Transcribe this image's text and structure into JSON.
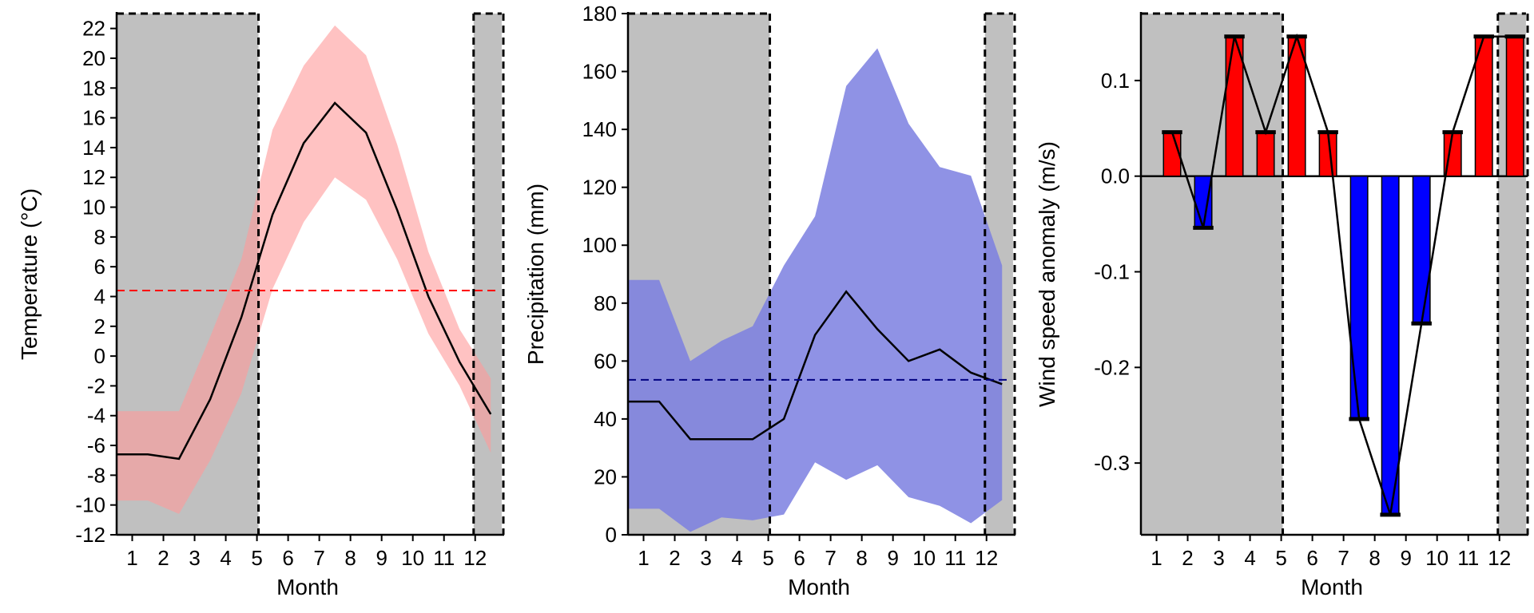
{
  "chart_data": [
    {
      "type": "line",
      "xlabel": "Month",
      "ylabel": "Temperature (°C)",
      "xlim": [
        0.5,
        12.75
      ],
      "ylim": [
        -12,
        23
      ],
      "x_ticks": [
        1,
        2,
        3,
        4,
        5,
        6,
        7,
        8,
        9,
        10,
        11,
        12
      ],
      "x_tick_labels": [
        "1",
        "2",
        "3",
        "4",
        "5",
        "6",
        "7",
        "8",
        "9",
        "10",
        "11",
        "12"
      ],
      "y_ticks": [
        -12,
        -10,
        -8,
        -6,
        -4,
        -2,
        0,
        2,
        4,
        6,
        8,
        10,
        12,
        14,
        16,
        18,
        20,
        22
      ],
      "y_tick_labels": [
        "-12",
        "-10",
        "-8",
        "-6",
        "-4",
        "-2",
        "0",
        "2",
        "4",
        "6",
        "8",
        "10",
        "12",
        "14",
        "16",
        "18",
        "20",
        "22"
      ],
      "shaded_periods": [
        [
          0.5,
          5.05
        ],
        [
          11.95,
          12.85
        ]
      ],
      "shade_color": "#c0c0c0",
      "band_color": "#ff9999",
      "band": {
        "x": [
          0.5,
          1.5,
          2.5,
          3.5,
          4.5,
          5.5,
          6.5,
          7.5,
          8.5,
          9.5,
          10.5,
          11.5,
          12.5
        ],
        "upper": [
          -3.7,
          -3.7,
          -3.7,
          1.3,
          6.5,
          15.2,
          19.5,
          22.2,
          20.2,
          14.2,
          7.0,
          1.8,
          -1.5
        ],
        "lower": [
          -9.7,
          -9.7,
          -10.6,
          -7.0,
          -2.5,
          4.5,
          9.0,
          12.0,
          10.5,
          6.5,
          1.5,
          -2.0,
          -6.5
        ]
      },
      "series": [
        {
          "x": [
            0.5,
            1.5,
            2.5,
            3.5,
            4.5,
            5.5,
            6.5,
            7.5,
            8.5,
            9.5,
            10.5,
            11.5,
            12.5
          ],
          "values": [
            -6.6,
            -6.6,
            -6.9,
            -2.9,
            2.6,
            9.5,
            14.3,
            17.0,
            15.0,
            9.8,
            4.0,
            -0.4,
            -3.9
          ],
          "color": "#000000"
        }
      ],
      "hline": {
        "value": 4.4,
        "color": "#ff0000"
      }
    },
    {
      "type": "line",
      "xlabel": "Month",
      "ylabel": "Precipitation (mm)",
      "xlim": [
        0.5,
        12.75
      ],
      "ylim": [
        0,
        180
      ],
      "x_ticks": [
        1,
        2,
        3,
        4,
        5,
        6,
        7,
        8,
        9,
        10,
        11,
        12
      ],
      "x_tick_labels": [
        "1",
        "2",
        "3",
        "4",
        "5",
        "6",
        "7",
        "8",
        "9",
        "10",
        "11",
        "12"
      ],
      "y_ticks": [
        0,
        20,
        40,
        60,
        80,
        100,
        120,
        140,
        160,
        180
      ],
      "y_tick_labels": [
        "0",
        "20",
        "40",
        "60",
        "80",
        "100",
        "120",
        "140",
        "160",
        "180"
      ],
      "shaded_periods": [
        [
          0.5,
          5.05
        ],
        [
          11.95,
          12.85
        ]
      ],
      "shade_color": "#c0c0c0",
      "band_color": "#7b7fe0",
      "band": {
        "x": [
          0.5,
          1.5,
          2.5,
          3.5,
          4.5,
          5.5,
          6.5,
          7.5,
          8.5,
          9.5,
          10.5,
          11.5,
          12.5
        ],
        "upper": [
          88,
          88,
          60,
          67,
          72,
          93,
          110,
          155,
          168,
          142,
          127,
          124,
          93
        ],
        "lower": [
          9,
          9,
          1,
          6,
          5,
          7,
          25,
          19,
          24,
          13,
          10,
          4,
          12
        ]
      },
      "series": [
        {
          "x": [
            0.5,
            1.5,
            2.5,
            3.5,
            4.5,
            5.5,
            6.5,
            7.5,
            8.5,
            9.5,
            10.5,
            11.5,
            12.5
          ],
          "values": [
            46,
            46,
            33,
            33,
            33,
            40,
            69,
            84,
            71,
            60,
            64,
            56,
            52
          ],
          "color": "#000000"
        }
      ],
      "hline": {
        "value": 53.5,
        "color": "#000080"
      }
    },
    {
      "type": "bar",
      "xlabel": "Month",
      "ylabel": "Wind speed anomaly (m/s)",
      "xlim": [
        0.5,
        12.75
      ],
      "ylim": [
        -0.375,
        0.17
      ],
      "x_ticks": [
        1,
        2,
        3,
        4,
        5,
        6,
        7,
        8,
        9,
        10,
        11,
        12
      ],
      "x_tick_labels": [
        "1",
        "2",
        "3",
        "4",
        "5",
        "6",
        "7",
        "8",
        "9",
        "10",
        "11",
        "12"
      ],
      "y_ticks": [
        -0.3,
        -0.2,
        -0.1,
        0.0,
        0.1
      ],
      "y_tick_labels": [
        "-0.3",
        "-0.2",
        "-0.1",
        "0.0",
        "0.1"
      ],
      "shaded_periods": [
        [
          0.5,
          5.05
        ],
        [
          11.95,
          12.85
        ]
      ],
      "shade_color": "#c0c0c0",
      "positive_color": "#ff0000",
      "negative_color": "#0000ff",
      "bars": {
        "x": [
          1.5,
          2.5,
          3.5,
          4.5,
          5.5,
          6.5,
          7.5,
          8.5,
          9.5,
          10.5,
          11.5,
          12.5
        ],
        "values": [
          0.046,
          -0.054,
          0.146,
          0.046,
          0.146,
          0.046,
          -0.254,
          -0.354,
          -0.154,
          0.046,
          0.146,
          0.146
        ]
      },
      "series": [
        {
          "x": [
            1.5,
            2.5,
            3.5,
            4.5,
            5.5,
            6.5,
            7.5,
            8.5,
            9.5,
            10.5,
            11.5,
            12.5
          ],
          "values": [
            0.046,
            -0.054,
            0.146,
            0.046,
            0.146,
            0.046,
            -0.254,
            -0.354,
            -0.154,
            0.046,
            0.146,
            0.146
          ],
          "color": "#000000"
        }
      ],
      "zero_line": true
    }
  ]
}
